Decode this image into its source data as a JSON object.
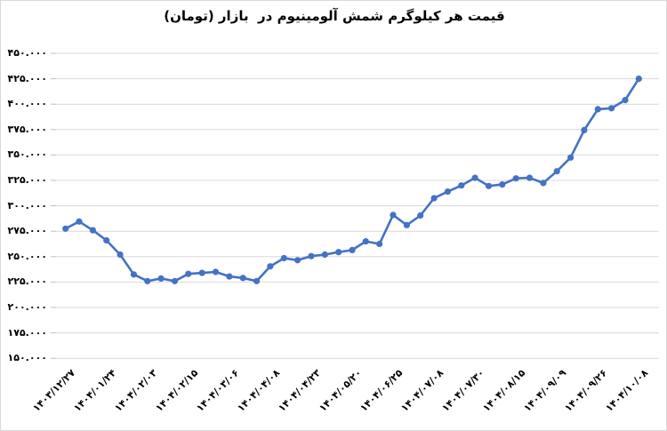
{
  "title": "قیمت هر کیلوگرم شمش آلومینیوم در  بازار (تومان)",
  "colors": {
    "line": "#4472C4",
    "marker": "#4472C4",
    "gridline": "#D9D9D9",
    "tick": "#BFBFBF",
    "text": "#000000",
    "frame": "#D9D9D9",
    "background": "#FFFFFF"
  },
  "chart_data": {
    "type": "line",
    "title": "قیمت هر کیلوگرم شمش آلومینیوم در  بازار (تومان)",
    "xlabel": "",
    "ylabel": "",
    "ylim": [
      150000,
      450000
    ],
    "ytick_step": 25000,
    "grid": "horizontal",
    "legend": "none",
    "marker": "circle",
    "label_every": 3,
    "categories": [
      "۱۴۰۳/۱۲/۲۷",
      "۱۴۰۴/۰۱/۲۴",
      "۱۴۰۴/۰۲/۰۳",
      "۱۴۰۴/۰۲/۱۵",
      "۱۴۰۴/۰۳/۰۶",
      "۱۴۰۴/۰۴/۰۸",
      "۱۴۰۴/۰۴/۲۳",
      "۱۴۰۴/۰۵/۲۰",
      "۱۴۰۴/۰۶/۲۵",
      "۱۴۰۴/۰۷/۰۸",
      "۱۴۰۴/۰۷/۳۰",
      "۱۴۰۴/۰۸/۱۵",
      "۱۴۰۴/۰۹/۰۹",
      "۱۴۰۴/۰۹/۲۶",
      "۱۴۰۴/۱۰/۰۸"
    ],
    "values": [
      277500,
      284500,
      276000,
      266000,
      252000,
      232500,
      226000,
      228500,
      226000,
      233000,
      234000,
      235000,
      230500,
      229000,
      226000,
      240500,
      248500,
      246500,
      250500,
      252000,
      254500,
      256500,
      265000,
      262500,
      291000,
      281000,
      290500,
      307500,
      314000,
      320000,
      327500,
      319500,
      321000,
      327000,
      327500,
      322500,
      334000,
      347500,
      374500,
      395000,
      396000,
      404000,
      425000
    ],
    "ytick_values": [
      450000,
      425000,
      400000,
      375000,
      350000,
      325000,
      300000,
      275000,
      250000,
      225000,
      200000,
      175000,
      150000
    ],
    "ytick_labels": [
      "۴۵۰.۰۰۰",
      "۴۲۵.۰۰۰",
      "۴۰۰.۰۰۰",
      "۳۷۵.۰۰۰",
      "۳۵۰.۰۰۰",
      "۳۲۵.۰۰۰",
      "۳۰۰.۰۰۰",
      "۲۷۵.۰۰۰",
      "۲۵۰.۰۰۰",
      "۲۲۵.۰۰۰",
      "۲۰۰.۰۰۰",
      "۱۷۵.۰۰۰",
      "۱۵۰.۰۰۰"
    ]
  }
}
